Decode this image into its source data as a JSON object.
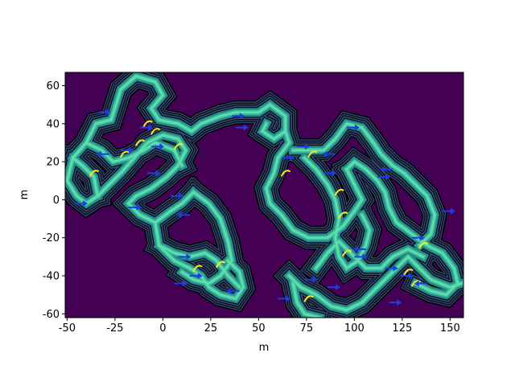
{
  "chart_data": {
    "type": "heatmap",
    "title": "",
    "xlabel": "m",
    "ylabel": "m",
    "xlim": [
      -51,
      157
    ],
    "ylim": [
      -62,
      67
    ],
    "xticks": [
      -50,
      -25,
      0,
      25,
      50,
      75,
      100,
      125,
      150
    ],
    "yticks": [
      -60,
      -40,
      -20,
      0,
      20,
      40,
      60
    ],
    "grid": false,
    "legend": "none",
    "colors": {
      "background": "#440154",
      "band_dark": "#31456b",
      "band_mid": "#238a8d",
      "band_light": "#42bb97",
      "streak": "#5de0b0",
      "highlight": "#fde725",
      "arrow": "#1f3ce0",
      "contour": "#000000"
    },
    "corridors": [
      {
        "name": "left-upper-loop",
        "points": [
          [
            -47,
            22
          ],
          [
            -40,
            30
          ],
          [
            -35,
            40
          ],
          [
            -27,
            42
          ],
          [
            -22,
            58
          ],
          [
            -14,
            65
          ],
          [
            -4,
            62
          ],
          [
            0,
            55
          ],
          [
            -6,
            48
          ],
          [
            -2,
            42
          ],
          [
            8,
            40
          ],
          [
            15,
            36
          ],
          [
            20,
            40
          ],
          [
            30,
            44
          ],
          [
            38,
            46
          ],
          [
            50,
            46
          ],
          [
            56,
            50
          ],
          [
            64,
            44
          ],
          [
            64,
            36
          ],
          [
            58,
            32
          ],
          [
            52,
            36
          ],
          [
            54,
            40
          ]
        ]
      },
      {
        "name": "left-mid",
        "points": [
          [
            -47,
            22
          ],
          [
            -50,
            10
          ],
          [
            -45,
            2
          ],
          [
            -40,
            -2
          ],
          [
            -34,
            2
          ],
          [
            -28,
            8
          ],
          [
            -22,
            14
          ],
          [
            -15,
            22
          ],
          [
            -8,
            30
          ],
          [
            0,
            34
          ],
          [
            8,
            32
          ],
          [
            12,
            26
          ],
          [
            8,
            18
          ],
          [
            2,
            12
          ],
          [
            -6,
            6
          ],
          [
            -14,
            2
          ],
          [
            -18,
            -2
          ],
          [
            -12,
            -8
          ],
          [
            -4,
            -12
          ],
          [
            4,
            -6
          ],
          [
            10,
            -2
          ],
          [
            16,
            4
          ]
        ]
      },
      {
        "name": "left-inner-a",
        "points": [
          [
            -40,
            30
          ],
          [
            -32,
            26
          ],
          [
            -26,
            20
          ],
          [
            -18,
            22
          ],
          [
            -10,
            26
          ],
          [
            -4,
            30
          ],
          [
            6,
            26
          ],
          [
            10,
            18
          ]
        ]
      },
      {
        "name": "left-inner-b",
        "points": [
          [
            -34,
            2
          ],
          [
            -36,
            12
          ],
          [
            -42,
            18
          ],
          [
            -47,
            22
          ]
        ]
      },
      {
        "name": "center-left-branch",
        "points": [
          [
            16,
            4
          ],
          [
            24,
            -2
          ],
          [
            30,
            -10
          ],
          [
            34,
            -22
          ],
          [
            36,
            -32
          ],
          [
            30,
            -40
          ],
          [
            24,
            -44
          ],
          [
            16,
            -42
          ],
          [
            10,
            -38
          ]
        ]
      },
      {
        "name": "lower-left-blob",
        "points": [
          [
            -4,
            -12
          ],
          [
            -2,
            -24
          ],
          [
            6,
            -32
          ],
          [
            14,
            -36
          ],
          [
            20,
            -40
          ],
          [
            24,
            -46
          ],
          [
            30,
            -50
          ],
          [
            38,
            -52
          ],
          [
            42,
            -46
          ],
          [
            40,
            -38
          ],
          [
            34,
            -32
          ]
        ]
      },
      {
        "name": "lower-left-blob-b",
        "points": [
          [
            -2,
            -24
          ],
          [
            6,
            -28
          ],
          [
            14,
            -30
          ],
          [
            22,
            -28
          ],
          [
            28,
            -32
          ],
          [
            34,
            -40
          ],
          [
            40,
            -46
          ]
        ]
      },
      {
        "name": "right-upper",
        "points": [
          [
            64,
            36
          ],
          [
            66,
            30
          ],
          [
            60,
            22
          ],
          [
            58,
            14
          ],
          [
            54,
            6
          ],
          [
            56,
            -2
          ],
          [
            62,
            -8
          ],
          [
            68,
            -16
          ],
          [
            76,
            -20
          ],
          [
            86,
            -20
          ],
          [
            94,
            -14
          ],
          [
            100,
            -6
          ],
          [
            104,
            0
          ],
          [
            100,
            8
          ],
          [
            96,
            16
          ]
        ]
      },
      {
        "name": "right-top-loop",
        "points": [
          [
            68,
            26
          ],
          [
            76,
            26
          ],
          [
            84,
            26
          ],
          [
            90,
            32
          ],
          [
            96,
            40
          ],
          [
            104,
            38
          ],
          [
            110,
            30
          ],
          [
            114,
            24
          ],
          [
            120,
            18
          ],
          [
            126,
            14
          ],
          [
            132,
            8
          ],
          [
            138,
            2
          ],
          [
            142,
            -8
          ],
          [
            140,
            -18
          ],
          [
            134,
            -24
          ]
        ]
      },
      {
        "name": "right-inner",
        "points": [
          [
            74,
            22
          ],
          [
            80,
            16
          ],
          [
            86,
            8
          ],
          [
            90,
            0
          ],
          [
            92,
            -10
          ],
          [
            90,
            -20
          ],
          [
            92,
            -30
          ],
          [
            96,
            -36
          ],
          [
            102,
            -32
          ],
          [
            106,
            -24
          ],
          [
            108,
            -16
          ],
          [
            104,
            -8
          ]
        ]
      },
      {
        "name": "right-cross",
        "points": [
          [
            96,
            16
          ],
          [
            100,
            20
          ],
          [
            106,
            16
          ],
          [
            112,
            10
          ],
          [
            116,
            4
          ],
          [
            118,
            -4
          ],
          [
            122,
            -12
          ],
          [
            130,
            -18
          ],
          [
            138,
            -24
          ],
          [
            146,
            -28
          ],
          [
            152,
            -36
          ],
          [
            154,
            -44
          ],
          [
            148,
            -50
          ],
          [
            140,
            -48
          ],
          [
            132,
            -44
          ]
        ]
      },
      {
        "name": "right-lower",
        "points": [
          [
            66,
            -40
          ],
          [
            72,
            -46
          ],
          [
            80,
            -50
          ],
          [
            88,
            -56
          ],
          [
            96,
            -58
          ],
          [
            104,
            -54
          ],
          [
            110,
            -48
          ],
          [
            116,
            -42
          ],
          [
            122,
            -36
          ],
          [
            128,
            -30
          ],
          [
            134,
            -36
          ],
          [
            140,
            -42
          ],
          [
            150,
            -46
          ],
          [
            156,
            -44
          ]
        ]
      },
      {
        "name": "right-lower-b",
        "points": [
          [
            80,
            -36
          ],
          [
            86,
            -28
          ],
          [
            92,
            -22
          ],
          [
            98,
            -28
          ],
          [
            106,
            -36
          ],
          [
            114,
            -36
          ],
          [
            120,
            -30
          ],
          [
            128,
            -26
          ],
          [
            136,
            -30
          ]
        ]
      },
      {
        "name": "right-lower-c",
        "points": [
          [
            68,
            -44
          ],
          [
            70,
            -54
          ],
          [
            74,
            -60
          ],
          [
            82,
            -62
          ]
        ]
      }
    ],
    "highlights": [
      [
        -8,
        40
      ],
      [
        -4,
        36
      ],
      [
        8,
        28
      ],
      [
        -20,
        24
      ],
      [
        -12,
        30
      ],
      [
        78,
        24
      ],
      [
        92,
        4
      ],
      [
        94,
        -8
      ],
      [
        96,
        -28
      ],
      [
        128,
        -38
      ],
      [
        132,
        -44
      ],
      [
        136,
        -24
      ],
      [
        76,
        -52
      ],
      [
        18,
        -36
      ],
      [
        30,
        -34
      ],
      [
        64,
        14
      ],
      [
        -36,
        14
      ]
    ],
    "arrows": [
      [
        -34,
        46,
        1
      ],
      [
        -12,
        38,
        0
      ],
      [
        -28,
        24,
        -1
      ],
      [
        -22,
        26,
        1
      ],
      [
        -6,
        28,
        0
      ],
      [
        -8,
        14,
        1
      ],
      [
        4,
        2,
        1
      ],
      [
        14,
        -8,
        -1
      ],
      [
        8,
        -30,
        1
      ],
      [
        14,
        -40,
        0
      ],
      [
        6,
        -44,
        1
      ],
      [
        40,
        -48,
        -1
      ],
      [
        36,
        44,
        0
      ],
      [
        38,
        38,
        0
      ],
      [
        62,
        22,
        1
      ],
      [
        70,
        28,
        0
      ],
      [
        90,
        24,
        -1
      ],
      [
        96,
        38,
        1
      ],
      [
        100,
        -30,
        0
      ],
      [
        106,
        -26,
        -1
      ],
      [
        116,
        -36,
        1
      ],
      [
        124,
        -40,
        0
      ],
      [
        130,
        -20,
        1
      ],
      [
        138,
        -44,
        -1
      ],
      [
        146,
        -6,
        0
      ],
      [
        74,
        -42,
        1
      ],
      [
        86,
        -46,
        0
      ],
      [
        118,
        -54,
        1
      ],
      [
        -46,
        -2,
        1
      ],
      [
        -18,
        -4,
        0
      ],
      [
        60,
        -52,
        1
      ],
      [
        112,
        12,
        0
      ],
      [
        120,
        16,
        -1
      ],
      [
        84,
        14,
        1
      ]
    ]
  }
}
